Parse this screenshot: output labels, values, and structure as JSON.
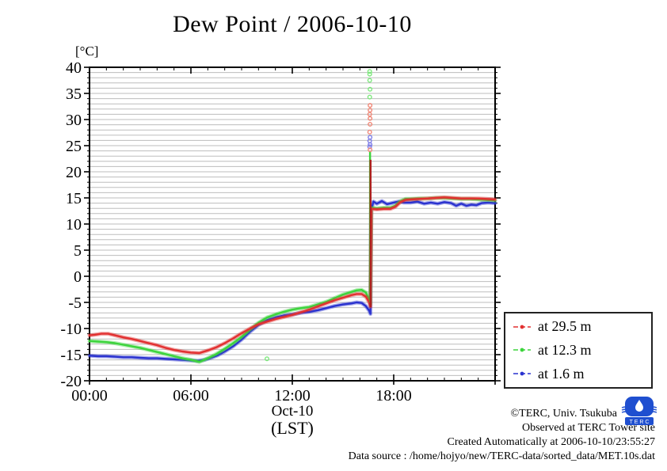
{
  "page": {
    "title": "Dew Point / 2006-10-10",
    "background": "#ffffff"
  },
  "axes": {
    "unit_label": "[°C]",
    "x_date_label": "Oct-10",
    "x_tz_label": "(LST)"
  },
  "legend": {
    "position": "outside-right-bottom"
  },
  "footer": {
    "copyright": "©TERC, Univ. Tsukuba",
    "observed": "Observed at TERC Tower site",
    "created": "Created Automatically at 2006-10-10/23:55:27",
    "data_source": "Data source : /home/hojyo/new/TERC-data/sorted_data/MET.10s.dat",
    "logo_text": "T E R C",
    "logo_color": "#1f4fd0"
  },
  "chart_data": {
    "type": "line",
    "title": "Dew Point / 2006-10-10",
    "xlabel": "Oct-10 (LST)",
    "ylabel": "[°C]",
    "xlim": [
      0,
      24
    ],
    "ylim": [
      -20,
      40
    ],
    "grid": "on",
    "grid_color": "#bdbdbd",
    "frame_color": "#000000",
    "x_major_ticks": [
      {
        "t": 0,
        "label": "00:00"
      },
      {
        "t": 6,
        "label": "06:00"
      },
      {
        "t": 12,
        "label": "12:00"
      },
      {
        "t": 18,
        "label": "18:00"
      },
      {
        "t": 24,
        "label": ""
      }
    ],
    "x_minor_step_hours": 1,
    "y_major_ticks": [
      40,
      35,
      30,
      25,
      20,
      15,
      10,
      5,
      0,
      -5,
      -10,
      -15,
      -20
    ],
    "y_minor_step": 1,
    "series": [
      {
        "name": "at 29.5 m",
        "color": "#e23030",
        "points": [
          [
            0,
            -11.3
          ],
          [
            0.3,
            -11.2
          ],
          [
            0.7,
            -11.0
          ],
          [
            1.1,
            -11.0
          ],
          [
            1.5,
            -11.3
          ],
          [
            2,
            -11.7
          ],
          [
            2.5,
            -12.0
          ],
          [
            3,
            -12.4
          ],
          [
            3.5,
            -12.8
          ],
          [
            4,
            -13.2
          ],
          [
            4.5,
            -13.7
          ],
          [
            5,
            -14.1
          ],
          [
            5.5,
            -14.4
          ],
          [
            6,
            -14.6
          ],
          [
            6.5,
            -14.7
          ],
          [
            7,
            -14.2
          ],
          [
            7.5,
            -13.6
          ],
          [
            8,
            -12.8
          ],
          [
            8.5,
            -11.9
          ],
          [
            9,
            -10.9
          ],
          [
            9.5,
            -10.0
          ],
          [
            10,
            -9.2
          ],
          [
            10.5,
            -8.7
          ],
          [
            11,
            -8.2
          ],
          [
            11.5,
            -7.8
          ],
          [
            12,
            -7.4
          ],
          [
            12.5,
            -6.9
          ],
          [
            13,
            -6.4
          ],
          [
            13.5,
            -5.8
          ],
          [
            14,
            -5.2
          ],
          [
            14.5,
            -4.6
          ],
          [
            15,
            -4.1
          ],
          [
            15.5,
            -3.6
          ],
          [
            15.8,
            -3.4
          ],
          [
            16.1,
            -3.4
          ],
          [
            16.35,
            -3.9
          ],
          [
            16.55,
            -5.0
          ],
          [
            16.62,
            -5.8
          ],
          [
            16.68,
            12.9
          ],
          [
            17,
            12.8
          ],
          [
            17.4,
            12.9
          ],
          [
            17.8,
            12.9
          ],
          [
            18.1,
            13.3
          ],
          [
            18.4,
            14.2
          ],
          [
            18.7,
            14.6
          ],
          [
            19,
            14.7
          ],
          [
            19.5,
            14.8
          ],
          [
            20,
            14.9
          ],
          [
            20.5,
            15.0
          ],
          [
            21,
            15.1
          ],
          [
            21.5,
            15.0
          ],
          [
            22,
            14.9
          ],
          [
            22.5,
            14.9
          ],
          [
            23,
            14.9
          ],
          [
            23.5,
            14.8
          ],
          [
            24,
            14.7
          ]
        ]
      },
      {
        "name": "at 12.3 m",
        "color": "#3cd43c",
        "points": [
          [
            0,
            -12.4
          ],
          [
            0.5,
            -12.5
          ],
          [
            1,
            -12.6
          ],
          [
            1.5,
            -12.8
          ],
          [
            2,
            -13.1
          ],
          [
            2.5,
            -13.4
          ],
          [
            3,
            -13.7
          ],
          [
            3.5,
            -14.1
          ],
          [
            4,
            -14.5
          ],
          [
            4.5,
            -14.9
          ],
          [
            5,
            -15.3
          ],
          [
            5.5,
            -15.7
          ],
          [
            6,
            -16.0
          ],
          [
            6.5,
            -16.4
          ],
          [
            7,
            -15.7
          ],
          [
            7.5,
            -14.9
          ],
          [
            8,
            -13.9
          ],
          [
            8.5,
            -12.8
          ],
          [
            9,
            -11.6
          ],
          [
            9.5,
            -10.2
          ],
          [
            10,
            -8.9
          ],
          [
            10.5,
            -7.9
          ],
          [
            11,
            -7.3
          ],
          [
            11.5,
            -6.8
          ],
          [
            12,
            -6.4
          ],
          [
            12.5,
            -6.1
          ],
          [
            13,
            -5.9
          ],
          [
            13.5,
            -5.4
          ],
          [
            14,
            -4.9
          ],
          [
            14.5,
            -4.2
          ],
          [
            15,
            -3.5
          ],
          [
            15.5,
            -3.0
          ],
          [
            15.8,
            -2.7
          ],
          [
            16.1,
            -2.6
          ],
          [
            16.35,
            -3.1
          ],
          [
            16.55,
            -4.5
          ],
          [
            16.62,
            -5.3
          ],
          [
            16.68,
            13.1
          ],
          [
            17,
            13.0
          ],
          [
            17.4,
            13.1
          ],
          [
            17.8,
            13.1
          ],
          [
            18.1,
            13.5
          ],
          [
            18.4,
            14.4
          ],
          [
            18.7,
            14.8
          ],
          [
            19,
            14.8
          ],
          [
            19.5,
            14.9
          ],
          [
            20,
            14.9
          ],
          [
            20.5,
            15.0
          ],
          [
            21,
            15.0
          ],
          [
            21.5,
            14.9
          ],
          [
            22,
            14.8
          ],
          [
            22.5,
            14.8
          ],
          [
            23,
            14.7
          ],
          [
            23.5,
            14.6
          ],
          [
            24,
            14.5
          ]
        ]
      },
      {
        "name": "at 1.6 m",
        "color": "#2a32cf",
        "points": [
          [
            0,
            -15.2
          ],
          [
            0.5,
            -15.3
          ],
          [
            1,
            -15.3
          ],
          [
            1.5,
            -15.4
          ],
          [
            2,
            -15.5
          ],
          [
            2.5,
            -15.5
          ],
          [
            3,
            -15.6
          ],
          [
            3.5,
            -15.7
          ],
          [
            4,
            -15.7
          ],
          [
            4.5,
            -15.8
          ],
          [
            5,
            -15.9
          ],
          [
            5.5,
            -16.0
          ],
          [
            6,
            -16.1
          ],
          [
            6.4,
            -16.2
          ],
          [
            6.8,
            -16.0
          ],
          [
            7.2,
            -15.6
          ],
          [
            7.6,
            -15.1
          ],
          [
            8,
            -14.4
          ],
          [
            8.5,
            -13.4
          ],
          [
            9,
            -12.1
          ],
          [
            9.5,
            -10.6
          ],
          [
            10,
            -9.3
          ],
          [
            10.5,
            -8.4
          ],
          [
            11,
            -7.9
          ],
          [
            11.5,
            -7.5
          ],
          [
            12,
            -7.3
          ],
          [
            12.5,
            -7.0
          ],
          [
            13,
            -6.8
          ],
          [
            13.5,
            -6.5
          ],
          [
            14,
            -6.1
          ],
          [
            14.5,
            -5.7
          ],
          [
            15,
            -5.4
          ],
          [
            15.5,
            -5.2
          ],
          [
            15.8,
            -5.0
          ],
          [
            16.1,
            -5.1
          ],
          [
            16.35,
            -5.7
          ],
          [
            16.55,
            -6.6
          ],
          [
            16.62,
            -7.2
          ],
          [
            16.66,
            12.5
          ],
          [
            16.8,
            14.3
          ],
          [
            17,
            13.9
          ],
          [
            17.3,
            14.4
          ],
          [
            17.6,
            13.8
          ],
          [
            18,
            14.1
          ],
          [
            18.3,
            14.3
          ],
          [
            18.6,
            14.1
          ],
          [
            19,
            14.1
          ],
          [
            19.4,
            14.3
          ],
          [
            19.8,
            13.9
          ],
          [
            20.2,
            14.1
          ],
          [
            20.6,
            13.9
          ],
          [
            21,
            14.2
          ],
          [
            21.4,
            14.0
          ],
          [
            21.7,
            13.5
          ],
          [
            22,
            13.9
          ],
          [
            22.3,
            13.5
          ],
          [
            22.6,
            13.7
          ],
          [
            22.9,
            13.6
          ],
          [
            23.2,
            14.0
          ],
          [
            23.6,
            14.1
          ],
          [
            24,
            14.0
          ]
        ]
      }
    ],
    "anomaly_spike": {
      "time_approx": "16:37",
      "lines": [
        {
          "t": 16.6,
          "from": 23.8,
          "to": -5.0,
          "color": "#3cd43c"
        },
        {
          "t": 16.63,
          "from": 22.3,
          "to": -5.9,
          "color": "#b02020"
        }
      ],
      "dots": [
        {
          "t": 16.58,
          "v": 39.2,
          "color": "#7de87d"
        },
        {
          "t": 16.58,
          "v": 38.7,
          "color": "#7de87d"
        },
        {
          "t": 16.58,
          "v": 37.5,
          "color": "#7de87d"
        },
        {
          "t": 16.6,
          "v": 35.8,
          "color": "#7de87d"
        },
        {
          "t": 16.58,
          "v": 34.3,
          "color": "#7de87d"
        },
        {
          "t": 16.6,
          "v": 32.7,
          "color": "#f08878"
        },
        {
          "t": 16.6,
          "v": 31.8,
          "color": "#f08878"
        },
        {
          "t": 16.58,
          "v": 31.0,
          "color": "#f08878"
        },
        {
          "t": 16.6,
          "v": 30.2,
          "color": "#f08878"
        },
        {
          "t": 16.6,
          "v": 29.1,
          "color": "#f08878"
        },
        {
          "t": 16.58,
          "v": 27.6,
          "color": "#f08878"
        },
        {
          "t": 16.6,
          "v": 26.6,
          "color": "#7d7de8"
        },
        {
          "t": 16.58,
          "v": 25.9,
          "color": "#7d7de8"
        },
        {
          "t": 16.6,
          "v": 25.2,
          "color": "#7d7de8"
        },
        {
          "t": 16.58,
          "v": 24.8,
          "color": "#7d7de8"
        },
        {
          "t": 16.6,
          "v": 24.2,
          "color": "#f08878"
        },
        {
          "t": 10.5,
          "v": -15.8,
          "color": "#7de87d"
        }
      ]
    }
  }
}
